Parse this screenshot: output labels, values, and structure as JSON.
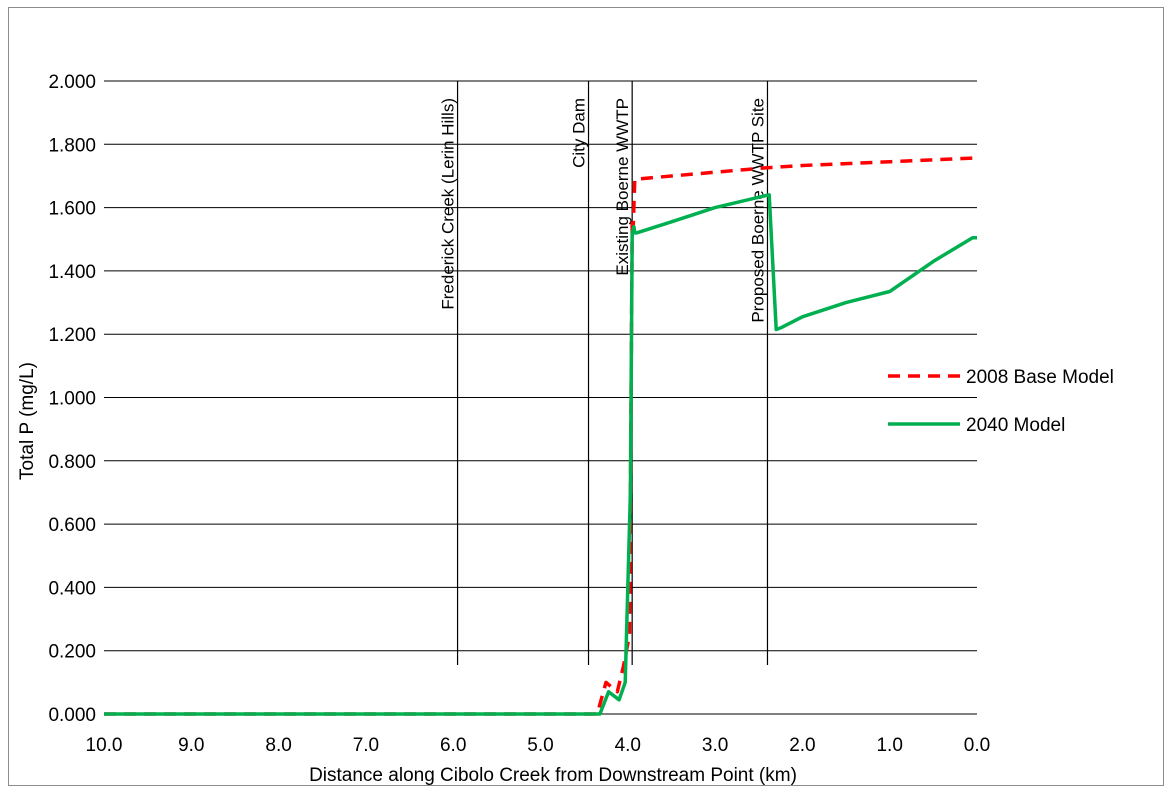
{
  "chart_data": {
    "type": "line",
    "title": "",
    "xlabel": "Distance along Cibolo Creek  from Downstream Point (km)",
    "ylabel": "Total P (mg/L)",
    "xlim": [
      10.0,
      0.0
    ],
    "x_reversed": true,
    "ylim": [
      0.0,
      2.0
    ],
    "x_ticks": [
      "10.0",
      "9.0",
      "8.0",
      "7.0",
      "6.0",
      "5.0",
      "4.0",
      "3.0",
      "2.0",
      "1.0",
      "0.0"
    ],
    "y_ticks": [
      "0.000",
      "0.200",
      "0.400",
      "0.600",
      "0.800",
      "1.000",
      "1.200",
      "1.400",
      "1.600",
      "1.800",
      "2.000"
    ],
    "grid": "horizontal",
    "legend_position": "right",
    "series": [
      {
        "name": "2008 Base Model",
        "color": "#ff0000",
        "dash": "dashed",
        "x": [
          10.0,
          5.0,
          4.35,
          4.25,
          4.12,
          4.05,
          3.98,
          3.95,
          3.94,
          3.92,
          3.9,
          3.5,
          3.0,
          2.4,
          2.0,
          1.0,
          0.0
        ],
        "y": [
          0.0,
          0.0,
          0.0,
          0.1,
          0.07,
          0.15,
          0.25,
          1.55,
          1.52,
          1.69,
          1.69,
          1.7,
          1.712,
          1.726,
          1.733,
          1.745,
          1.757
        ]
      },
      {
        "name": "2040 Model",
        "color": "#00b050",
        "dash": "solid",
        "x": [
          10.0,
          5.0,
          4.32,
          4.22,
          4.1,
          4.03,
          3.97,
          3.95,
          3.93,
          3.92,
          3.9,
          3.5,
          3.0,
          2.42,
          2.38,
          2.3,
          2.25,
          2.0,
          1.5,
          1.0,
          0.5,
          0.05,
          0.0
        ],
        "y": [
          0.0,
          0.0,
          0.0,
          0.07,
          0.045,
          0.1,
          0.7,
          1.52,
          1.54,
          1.52,
          1.52,
          1.555,
          1.6,
          1.638,
          1.64,
          1.215,
          1.22,
          1.255,
          1.3,
          1.335,
          1.43,
          1.505,
          1.505
        ]
      }
    ],
    "markers": [
      {
        "x": 5.95,
        "label": "Frederick Creek (Lerin Hills)"
      },
      {
        "x": 4.45,
        "label": "City Dam"
      },
      {
        "x": 3.95,
        "label": "Existing Boerne WWTP"
      },
      {
        "x": 2.4,
        "label": "Proposed Boerne WWTP Site"
      }
    ]
  }
}
